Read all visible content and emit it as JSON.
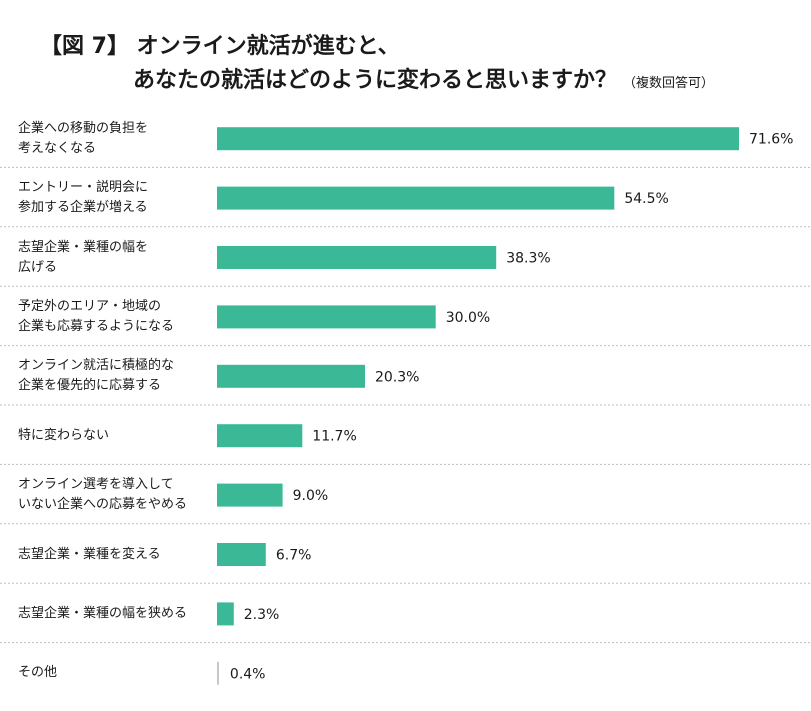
{
  "title": {
    "line1": "【図 7】 オンライン就活が進むと、",
    "line2": "あなたの就活はどのように変わると思いますか？",
    "note": "（複数回答可）"
  },
  "colors": {
    "bar": "#3bb997",
    "zero_tick": "#c8c8c8",
    "separator": "#bfbfbf"
  },
  "chart_data": {
    "type": "bar",
    "orientation": "horizontal",
    "categories": [
      [
        "企業への移動の負担を",
        "考えなくなる"
      ],
      [
        "エントリー・説明会に",
        "参加する企業が増える"
      ],
      [
        "志望企業・業種の幅を",
        "広げる"
      ],
      [
        "予定外のエリア・地域の",
        "企業も応募するようになる"
      ],
      [
        "オンライン就活に積極的な",
        "企業を優先的に応募する"
      ],
      [
        "特に変わらない"
      ],
      [
        "オンライン選考を導入して",
        "いない企業への応募をやめる"
      ],
      [
        "志望企業・業種を変える"
      ],
      [
        "志望企業・業種の幅を狭める"
      ],
      [
        "その他"
      ]
    ],
    "values": [
      71.6,
      54.5,
      38.3,
      30.0,
      20.3,
      11.7,
      9.0,
      6.7,
      2.3,
      0.4
    ],
    "value_labels": [
      "71.6%",
      "54.5%",
      "38.3%",
      "30.0%",
      "20.3%",
      "11.7%",
      "9.0%",
      "6.7%",
      "2.3%",
      "0.4%"
    ],
    "xlim": [
      0,
      100
    ],
    "unit": "%",
    "grid": false,
    "legend": "none"
  }
}
